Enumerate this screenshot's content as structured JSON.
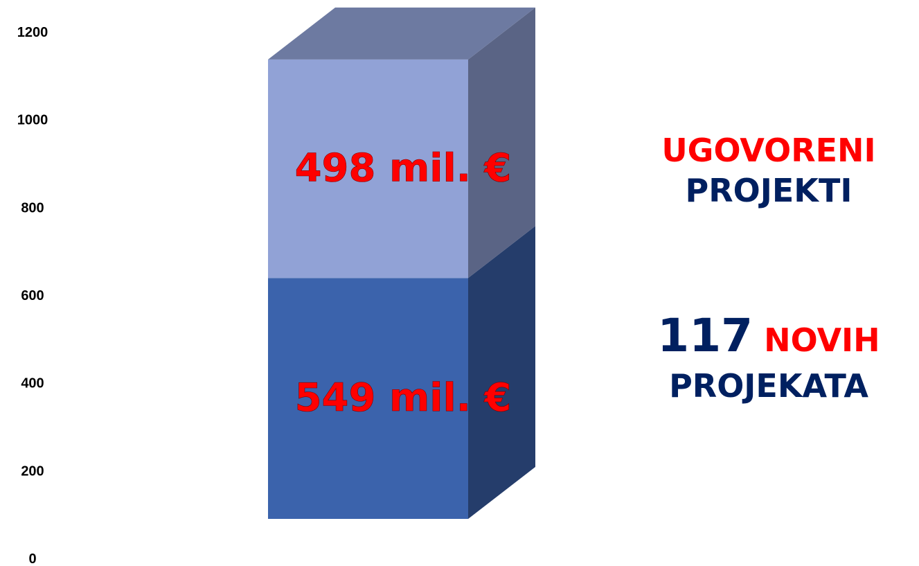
{
  "chart_data": {
    "type": "bar",
    "stacked": true,
    "style": "3d-column",
    "categories": [
      ""
    ],
    "series": [
      {
        "values": [
          549
        ],
        "label": "549 mil. €",
        "color": "#3b63ac"
      },
      {
        "values": [
          498
        ],
        "label": "498 mil. €",
        "color": "#91a2d6"
      }
    ],
    "ylim": [
      0,
      1200
    ],
    "yticks": [
      "0",
      "200",
      "400",
      "600",
      "800",
      "1000",
      "1200"
    ],
    "grid": false
  },
  "annotations": {
    "contracted_word": "UGOVORENI",
    "projects_word": "PROJEKTI",
    "new_count": "117",
    "new_word": "NOVIH",
    "projects_plural": "PROJEKATA"
  },
  "colors": {
    "accent_red": "#ff0000",
    "navy": "#002060"
  }
}
